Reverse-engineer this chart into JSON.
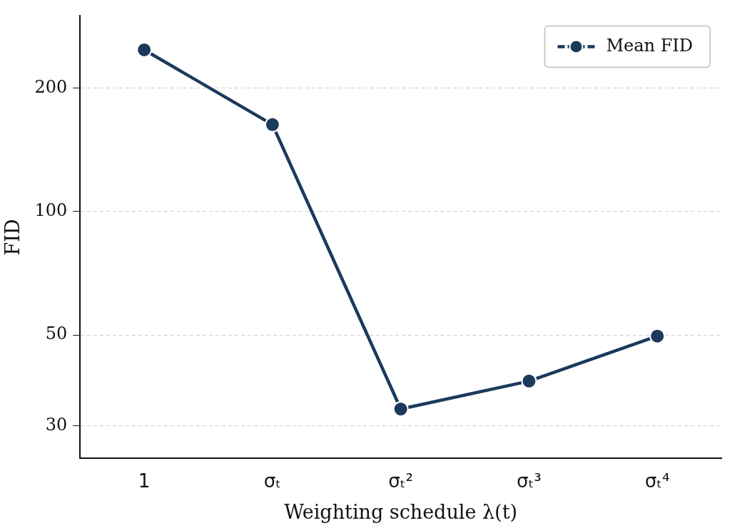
{
  "chart_data": {
    "type": "line",
    "xlabel": "Weighting schedule λ(t)",
    "ylabel": "FID",
    "categories": [
      "1",
      "σₜ",
      "σₜ²",
      "σₜ³",
      "σₜ⁴"
    ],
    "series": [
      {
        "name": "Mean FID",
        "color": "#1b3a5c",
        "values": [
          248,
          163,
          33,
          38.6,
          49.7
        ]
      }
    ],
    "ylim": [
      25,
      300
    ],
    "yticks": [
      30,
      50,
      100,
      200
    ],
    "log": true,
    "grid": "y",
    "legend": "top right",
    "marker": "circle",
    "line_style": "solid"
  }
}
